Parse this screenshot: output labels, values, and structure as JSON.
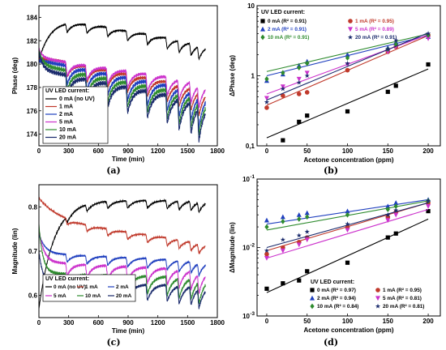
{
  "chart_data": [
    {
      "id": "a",
      "panel_label": "(a)",
      "type": "line",
      "xlabel": "Time (min)",
      "ylabel": "Phase (deg)",
      "xlim": [
        0,
        1800
      ],
      "ylim": [
        173,
        185
      ],
      "xticks": [
        0,
        300,
        600,
        900,
        1200,
        1500,
        1800
      ],
      "yticks": [
        174,
        176,
        178,
        180,
        182,
        184
      ],
      "legend_title": "UV LED current:",
      "legend_position": "lower-left",
      "series": [
        {
          "name": "0 mA (no UV)",
          "color": "#000000",
          "start": 180.3,
          "plateau": 184.2,
          "rise_tau": 120,
          "amp": 1.0,
          "drift": -0.0015
        },
        {
          "name": "1 mA",
          "color": "#c0392b",
          "start": 180.4,
          "plateau": 180.6,
          "rise_tau": 60,
          "amp": 1.8,
          "drift": -0.0016
        },
        {
          "name": "2 mA",
          "color": "#1f3fbf",
          "start": 180.3,
          "plateau": 180.3,
          "rise_tau": 60,
          "amp": 2.3,
          "drift": -0.0016
        },
        {
          "name": "5 mA",
          "color": "#cc33cc",
          "start": 181.3,
          "plateau": 180.5,
          "rise_tau": 40,
          "amp": 1.7,
          "drift": -0.0012
        },
        {
          "name": "10 mA",
          "color": "#2e8b2e",
          "start": 181.2,
          "plateau": 179.9,
          "rise_tau": 40,
          "amp": 2.5,
          "drift": -0.0016
        },
        {
          "name": "20 mA",
          "color": "#1a2a6c",
          "start": 181.0,
          "plateau": 179.5,
          "rise_tau": 40,
          "amp": 2.6,
          "drift": -0.0016
        }
      ],
      "exposure_times": [
        270,
        470,
        680,
        880,
        1080,
        1280,
        1400,
        1520,
        1600
      ]
    },
    {
      "id": "b",
      "panel_label": "(b)",
      "type": "scatter",
      "xlabel": "Acetone concentration (ppm)",
      "ylabel": "ΔPhase (deg)",
      "xscale": "linear",
      "yscale": "log",
      "xlim": [
        -12,
        215
      ],
      "ylim": [
        0.1,
        10
      ],
      "xticks": [
        0,
        50,
        100,
        150,
        200
      ],
      "yticks": [
        0.1,
        1,
        10
      ],
      "ytick_labels": [
        "0,1",
        "1",
        "10"
      ],
      "legend_title": "UV LED current:",
      "legend_position": "top-left",
      "x": [
        0,
        20,
        40,
        50,
        100,
        150,
        160,
        200
      ],
      "series": [
        {
          "name": "0 mA (R² = 0.91)",
          "color": "#000000",
          "marker": "square",
          "values": [
            null,
            0.12,
            0.22,
            0.27,
            0.31,
            0.59,
            0.72,
            1.45
          ],
          "fit": [
            0.13,
            1.25
          ]
        },
        {
          "name": "1 mA (R² = 0.95)",
          "color": "#c0392b",
          "marker": "circle",
          "values": [
            0.35,
            0.52,
            0.55,
            0.58,
            1.2,
            2.2,
            2.6,
            3.8
          ],
          "fit": [
            0.38,
            3.75
          ]
        },
        {
          "name": "2 mA (R² = 0.91)",
          "color": "#1f3fbf",
          "marker": "triangle-up",
          "values": [
            0.85,
            1.05,
            1.4,
            1.6,
            2.0,
            2.5,
            3.0,
            3.6
          ],
          "fit": [
            1.0,
            3.75
          ]
        },
        {
          "name": "5 mA (R² = 0.89)",
          "color": "#cc33cc",
          "marker": "triangle-down",
          "values": [
            0.48,
            0.7,
            0.9,
            1.1,
            1.45,
            2.2,
            2.6,
            3.4
          ],
          "fit": [
            0.55,
            3.85
          ]
        },
        {
          "name": "10 mA (R² = 0.91)",
          "color": "#2e8b2e",
          "marker": "diamond",
          "values": [
            0.9,
            1.1,
            1.3,
            1.5,
            1.8,
            2.4,
            2.8,
            3.8
          ],
          "fit": [
            1.15,
            3.95
          ]
        },
        {
          "name": "20 mA (R² = 0.91)",
          "color": "#1a2a6c",
          "marker": "star",
          "values": [
            0.42,
            0.65,
            0.8,
            1.0,
            1.5,
            2.4,
            3.2,
            4.0
          ],
          "fit": [
            0.45,
            4.1
          ]
        }
      ]
    },
    {
      "id": "c",
      "panel_label": "(c)",
      "type": "line",
      "xlabel": "Time (min)",
      "ylabel": "Magnitude (lin)",
      "xlim": [
        0,
        1800
      ],
      "ylim": [
        0.55,
        0.85
      ],
      "xticks": [
        0,
        300,
        600,
        900,
        1200,
        1500,
        1800
      ],
      "yticks": [
        0.6,
        0.7,
        0.8
      ],
      "legend_title": "UV LED current:",
      "legend_position": "lower-left",
      "series": [
        {
          "name": "0 mA (no UV)",
          "color": "#000000",
          "start": 0.57,
          "plateau": 0.815,
          "rise_tau": 150,
          "amp": 0.02,
          "drift": 0.0
        },
        {
          "name": "1 mA",
          "color": "#c0392b",
          "start": 0.82,
          "plateau": 0.77,
          "rise_tau": 200,
          "amp": 0.02,
          "drift": -3e-05
        },
        {
          "name": "2 mA",
          "color": "#1f3fbf",
          "start": 0.74,
          "plateau": 0.695,
          "rise_tau": 60,
          "amp": 0.025,
          "drift": -1e-05
        },
        {
          "name": "5 mA",
          "color": "#cc33cc",
          "start": 0.75,
          "plateau": 0.675,
          "rise_tau": 50,
          "amp": 0.04,
          "drift": -1e-05
        },
        {
          "name": "10 mA",
          "color": "#2e8b2e",
          "start": 0.76,
          "plateau": 0.65,
          "rise_tau": 40,
          "amp": 0.045,
          "drift": -5e-06
        },
        {
          "name": "20 mA",
          "color": "#1a2a6c",
          "start": 0.7,
          "plateau": 0.625,
          "rise_tau": 40,
          "amp": 0.04,
          "drift": 0.0
        }
      ],
      "exposure_times": [
        270,
        470,
        680,
        880,
        1080,
        1280,
        1400,
        1520,
        1600
      ]
    },
    {
      "id": "d",
      "panel_label": "(d)",
      "type": "scatter",
      "xlabel": "Acetone concentration (ppm)",
      "ylabel": "ΔMagnitude (lin)",
      "xscale": "linear",
      "yscale": "log",
      "xlim": [
        -12,
        215
      ],
      "ylim": [
        0.001,
        0.1
      ],
      "xticks": [
        0,
        50,
        100,
        150,
        200
      ],
      "yticks": [
        0.001,
        0.01,
        0.1
      ],
      "ytick_base": "10",
      "ytick_exponents": [
        "-3",
        "-2",
        "-1"
      ],
      "legend_title": "UV LED current:",
      "legend_position": "bottom-right",
      "x": [
        0,
        20,
        40,
        50,
        100,
        150,
        160,
        200
      ],
      "series": [
        {
          "name": "0 mA (R² = 0.97)",
          "color": "#000000",
          "marker": "square",
          "values": [
            0.0025,
            0.003,
            0.0033,
            0.0045,
            0.006,
            0.014,
            0.016,
            0.034
          ],
          "fit": [
            0.0022,
            0.026
          ]
        },
        {
          "name": "1 mA (R² = 0.95)",
          "color": "#c0392b",
          "marker": "circle",
          "values": [
            0.008,
            0.01,
            0.012,
            0.014,
            0.02,
            0.028,
            0.033,
            0.045
          ],
          "fit": [
            0.009,
            0.045
          ]
        },
        {
          "name": "2 mA (R² = 0.94)",
          "color": "#1f3fbf",
          "marker": "triangle-up",
          "values": [
            0.025,
            0.028,
            0.03,
            0.032,
            0.034,
            0.04,
            0.045,
            0.05
          ],
          "fit": [
            0.022,
            0.05
          ]
        },
        {
          "name": "5 mA (R² = 0.81)",
          "color": "#cc33cc",
          "marker": "triangle-down",
          "values": [
            0.007,
            0.009,
            0.011,
            0.013,
            0.018,
            0.025,
            0.03,
            0.04
          ],
          "fit": [
            0.007,
            0.036
          ]
        },
        {
          "name": "10 mA (R² = 0.84)",
          "color": "#2e8b2e",
          "marker": "diamond",
          "values": [
            0.02,
            0.024,
            0.026,
            0.028,
            0.03,
            0.036,
            0.04,
            0.048
          ],
          "fit": [
            0.018,
            0.048
          ]
        },
        {
          "name": "20 mA (R² = 0.81)",
          "color": "#1a2a6c",
          "marker": "star",
          "values": [
            0.009,
            0.013,
            0.015,
            0.017,
            0.022,
            0.03,
            0.035,
            0.048
          ],
          "fit": [
            0.01,
            0.045
          ]
        }
      ]
    }
  ]
}
